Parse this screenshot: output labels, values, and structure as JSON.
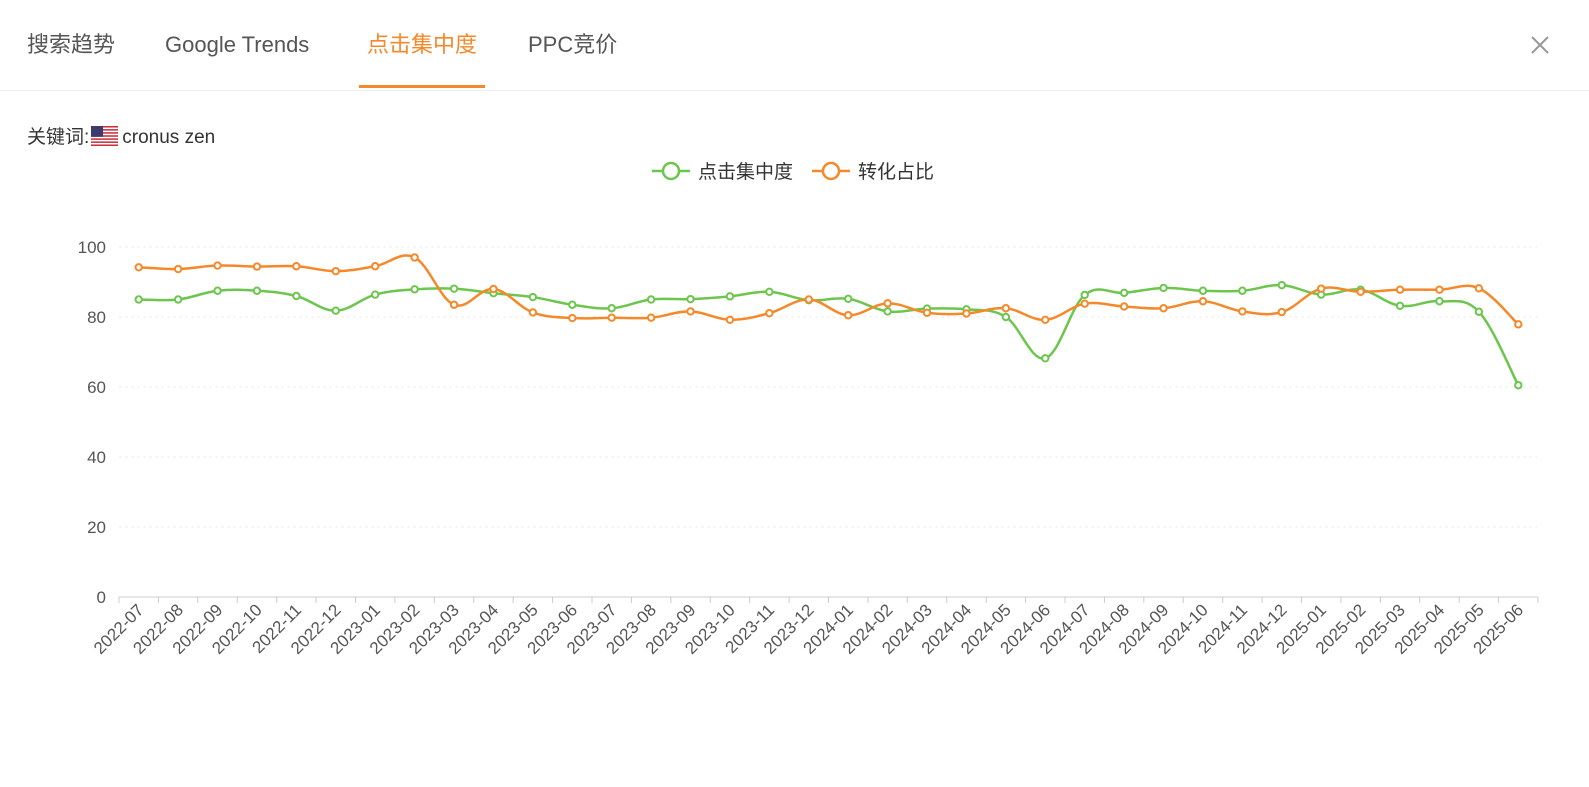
{
  "tabs": [
    {
      "label": "搜索趋势",
      "active": false
    },
    {
      "label": "Google Trends",
      "active": false
    },
    {
      "label": "点击集中度",
      "active": true
    },
    {
      "label": "PPC竞价",
      "active": false
    }
  ],
  "close_icon": "close-icon",
  "keyword": {
    "label": "关键词:",
    "flag_icon": "us-flag-icon",
    "value": "cronus zen"
  },
  "colors": {
    "accent": "#f5892a",
    "series_green": "#6cc64e",
    "series_orange": "#f5892a"
  },
  "chart_data": {
    "type": "line",
    "legend_position": "top-center",
    "grid": true,
    "ylim": [
      0,
      100
    ],
    "yticks": [
      0,
      20,
      40,
      60,
      80,
      100
    ],
    "x": [
      "2022-07",
      "2022-08",
      "2022-09",
      "2022-10",
      "2022-11",
      "2022-12",
      "2023-01",
      "2023-02",
      "2023-03",
      "2023-04",
      "2023-05",
      "2023-06",
      "2023-07",
      "2023-08",
      "2023-09",
      "2023-10",
      "2023-11",
      "2023-12",
      "2024-01",
      "2024-02",
      "2024-03",
      "2024-04",
      "2024-05",
      "2024-06",
      "2024-07",
      "2024-08",
      "2024-09",
      "2024-10",
      "2024-11",
      "2024-12",
      "2025-01",
      "2025-02",
      "2025-03",
      "2025-04",
      "2025-05",
      "2025-06"
    ],
    "series": [
      {
        "name": "点击集中度",
        "color": "#6cc64e",
        "values": [
          85.0,
          85.0,
          87.5,
          87.5,
          86.0,
          81.8,
          86.4,
          87.9,
          88.1,
          86.8,
          85.7,
          83.5,
          82.5,
          85.0,
          85.1,
          85.9,
          87.2,
          84.8,
          85.2,
          81.6,
          82.4,
          82.2,
          80.0,
          68.2,
          86.3,
          86.9,
          88.3,
          87.5,
          87.5,
          89.1,
          86.4,
          87.8,
          83.2,
          84.5,
          81.5,
          60.5
        ]
      },
      {
        "name": "转化占比",
        "color": "#f5892a",
        "values": [
          94.2,
          93.7,
          94.7,
          94.4,
          94.5,
          93.1,
          94.5,
          97.0,
          83.5,
          88.0,
          81.3,
          79.7,
          79.8,
          79.8,
          81.6,
          79.2,
          81.1,
          85.0,
          80.5,
          83.9,
          81.2,
          81.0,
          82.5,
          79.2,
          83.8,
          83.0,
          82.5,
          84.5,
          81.6,
          81.4,
          88.1,
          87.2,
          87.8,
          87.8,
          88.2,
          77.9
        ]
      }
    ]
  }
}
